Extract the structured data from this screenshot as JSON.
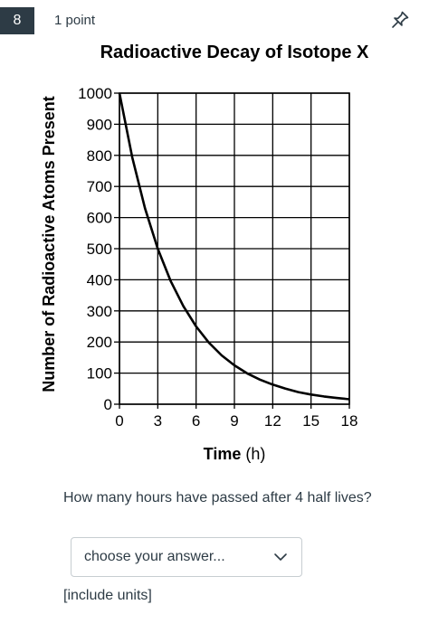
{
  "question": {
    "number": "8",
    "points": "1 point",
    "prompt": "How many hours have passed after 4 half lives?",
    "dropdown_value": "choose your answer...",
    "hint": "[include units]"
  },
  "icons": {
    "pin": "pin-icon",
    "dropdown": "chevron-down-icon"
  },
  "chart_data": {
    "type": "line",
    "title": "Radioactive Decay of Isotope X",
    "xlabel": "Time (h)",
    "ylabel": "Number of Radioactive Atoms Present",
    "xlim": [
      0,
      18
    ],
    "ylim": [
      0,
      1000
    ],
    "xticks": [
      0,
      3,
      6,
      9,
      12,
      15,
      18
    ],
    "yticks": [
      0,
      100,
      200,
      300,
      400,
      500,
      600,
      700,
      800,
      900,
      1000
    ],
    "grid": true,
    "series": [
      {
        "x": [
          0,
          1,
          2,
          3,
          4,
          5,
          6,
          7,
          8,
          9,
          10,
          11,
          12,
          13,
          14,
          15,
          16,
          17,
          18
        ],
        "y": [
          1000,
          794,
          630,
          500,
          397,
          315,
          250,
          198,
          157,
          125,
          99,
          79,
          63,
          50,
          39,
          31,
          25,
          20,
          16
        ]
      }
    ]
  }
}
